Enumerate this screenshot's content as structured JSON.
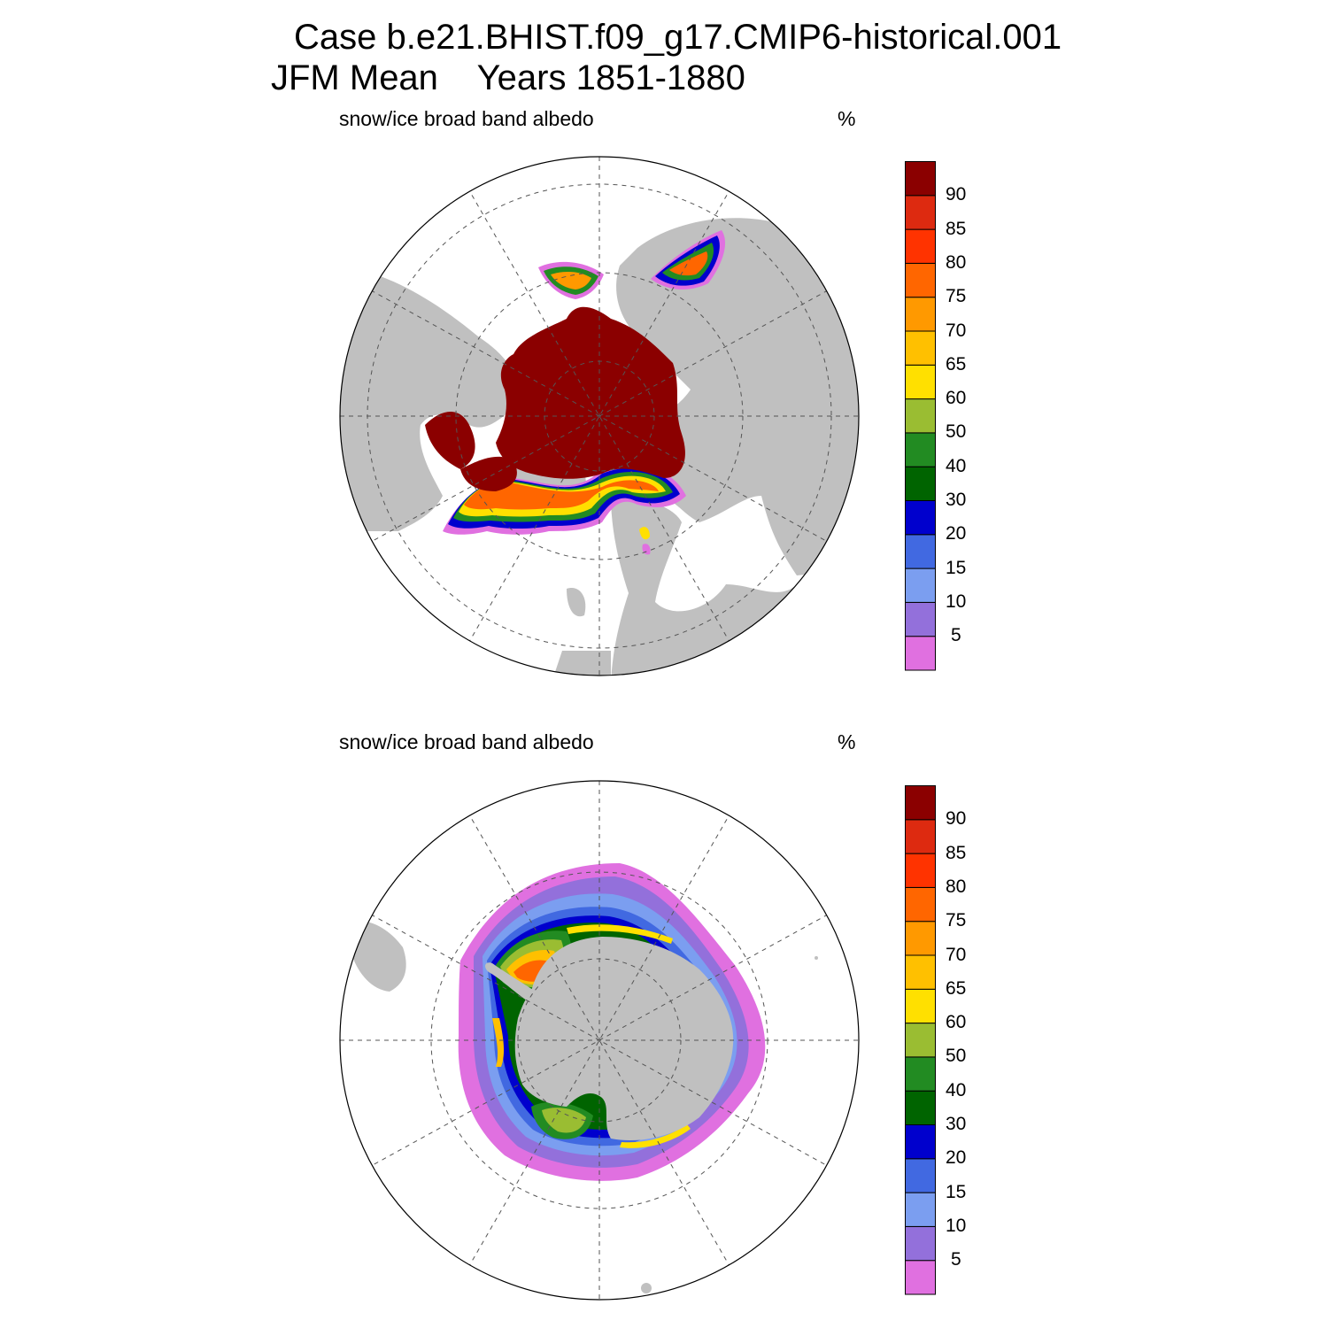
{
  "header": {
    "title_line1": "Case b.e21.BHIST.f09_g17.CMIP6-historical.001",
    "title_line2": "JFM Mean    Years 1851-1880"
  },
  "panels": [
    {
      "hemisphere": "north",
      "variable_label": "snow/ice broad band albedo",
      "units_label": "%"
    },
    {
      "hemisphere": "south",
      "variable_label": "snow/ice broad band albedo",
      "units_label": "%"
    }
  ],
  "colorbar": {
    "ticks": [
      "5",
      "10",
      "15",
      "20",
      "30",
      "40",
      "50",
      "60",
      "65",
      "70",
      "75",
      "80",
      "85",
      "90"
    ],
    "colors": [
      "#e070e0",
      "#9370db",
      "#7b9ef0",
      "#4169e1",
      "#0000cd",
      "#006400",
      "#228b22",
      "#9abd32",
      "#ffe000",
      "#ffc000",
      "#ff9900",
      "#ff6600",
      "#ff3300",
      "#dd2a10",
      "#8b0000"
    ]
  },
  "style": {
    "land_color": "#c0c0c0",
    "ocean_color": "#ffffff",
    "grid_color": "#555555"
  }
}
